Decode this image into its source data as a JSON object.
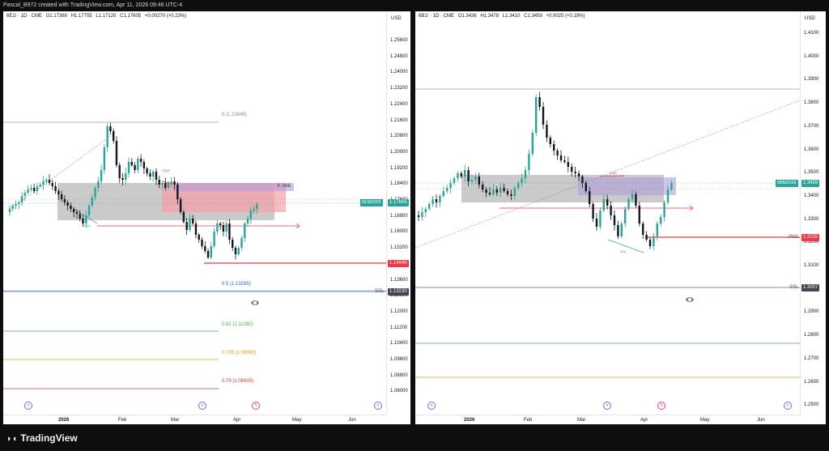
{
  "topbar": {
    "text": "Pascal_B972 created with TradingView.com, Apr 11, 2026 09:46 UTC-4"
  },
  "left": {
    "header": {
      "symbol": "6E1! · 1D · CME",
      "open": "O1.17360",
      "high": "H1.17755",
      "low": "L1.17120",
      "close": "C1.17605",
      "change": "+0.00270 (+0.23%)"
    },
    "currency": "USD",
    "yticks": [
      "1.25600",
      "1.24800",
      "1.24000",
      "1.23200",
      "1.22400",
      "1.21600",
      "1.20800",
      "1.20000",
      "1.19200",
      "1.18400",
      "1.17600",
      "1.16800",
      "1.16000",
      "1.15200",
      "1.14400",
      "1.13600",
      "1.12800",
      "1.12000",
      "1.11200",
      "1.10400",
      "1.09600",
      "1.08800",
      "1.08000"
    ],
    "xticks": [
      "2026",
      "Feb",
      "Mar",
      "Apr",
      "May",
      "Jun"
    ],
    "fib": {
      "f0": "0 (1.21645)",
      "f05": "0.5 (1.13285)",
      "f062": "0.62 (1.11280)",
      "f0705": "0.705 (1.09860)",
      "f079": "0.79 (1.08435)"
    },
    "tags": {
      "symbol": "6EM2026",
      "price": "1.17605",
      "red": "1.14640",
      "ssl_label": "SSL",
      "ssl": "1.13230"
    },
    "labels": {
      "vimb": "V. Imb",
      "small_red": "EQH",
      "small_green": "EQL"
    },
    "colors": {
      "up": "#26a69a",
      "down": "#131722"
    }
  },
  "right": {
    "header": {
      "symbol": "6B1! · 1D · CME",
      "open": "O1.3436",
      "high": "H1.3478",
      "low": "L1.3410",
      "close": "C1.3459",
      "change": "+0.0025 (+0.19%)"
    },
    "currency": "USD",
    "yticks": [
      "1.4100",
      "1.4000",
      "1.3900",
      "1.3800",
      "1.3700",
      "1.3600",
      "1.3500",
      "1.3400",
      "1.3300",
      "1.3200",
      "1.3100",
      "1.3000",
      "1.2900",
      "1.2800",
      "1.2700",
      "1.2600",
      "1.2500"
    ],
    "xticks": [
      "2026",
      "Feb",
      "Mar",
      "Apr",
      "May",
      "Jun"
    ],
    "tags": {
      "symbol": "6BM2026",
      "price": "1.3459",
      "pwl_label": "PWL",
      "red": "1.3225",
      "ssl_label": "SSL",
      "ssl": "1.3007"
    },
    "labels": {
      "small_red": "EQH",
      "small_green": "EQL"
    }
  },
  "footer": {
    "brand": "TradingView"
  }
}
